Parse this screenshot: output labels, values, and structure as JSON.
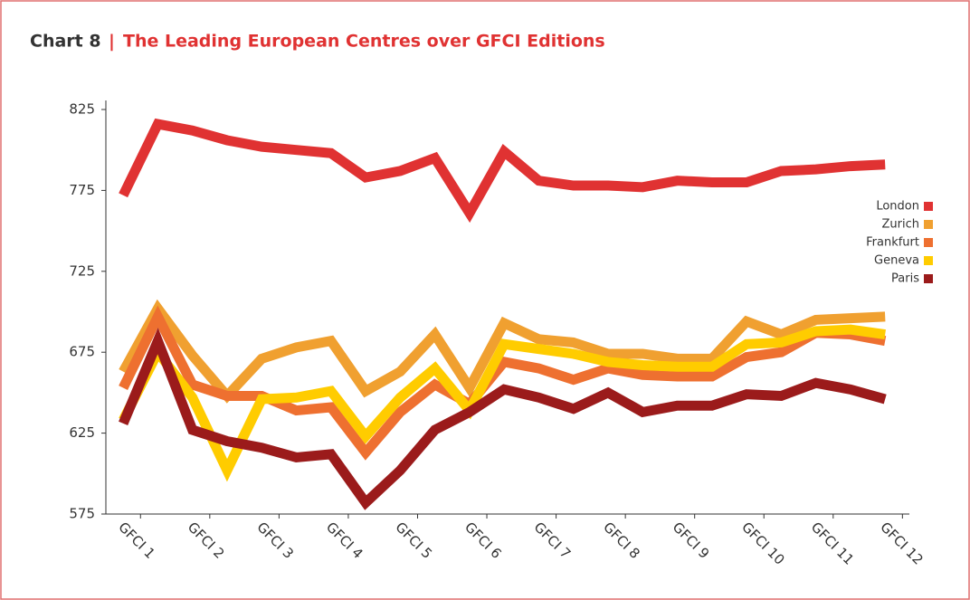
{
  "chart_data": {
    "type": "line",
    "chart_label": "Chart 8",
    "title": "The Leading European Centres over GFCI Editions",
    "x": [
      0.75,
      1.25,
      1.75,
      2.25,
      2.75,
      3.25,
      3.75,
      4.25,
      4.75,
      5.25,
      5.75,
      6.25,
      6.75,
      7.25,
      7.75,
      8.25,
      8.75,
      9.25,
      9.75,
      10.25,
      10.75,
      11.25,
      11.75
    ],
    "xlim": [
      0.5,
      12.1
    ],
    "xticks": [
      {
        "value": 1,
        "label": "GFCI 1"
      },
      {
        "value": 2,
        "label": "GFCI 2"
      },
      {
        "value": 3,
        "label": "GFCI 3"
      },
      {
        "value": 4,
        "label": "GFCI 4"
      },
      {
        "value": 5,
        "label": "GFCI 5"
      },
      {
        "value": 6,
        "label": "GFCI 6"
      },
      {
        "value": 7,
        "label": "GFCI 7"
      },
      {
        "value": 8,
        "label": "GFCI 8"
      },
      {
        "value": 9,
        "label": "GFCI 9"
      },
      {
        "value": 10,
        "label": "GFCI 10"
      },
      {
        "value": 11,
        "label": "GFCI 11"
      },
      {
        "value": 12,
        "label": "GFCI 12"
      }
    ],
    "ylim": [
      575,
      825
    ],
    "yticks": [
      575,
      625,
      675,
      725,
      775,
      825
    ],
    "legend": "right",
    "series": [
      {
        "name": "London",
        "color": "#e03232",
        "values": [
          772,
          816,
          812,
          806,
          802,
          800,
          798,
          783,
          787,
          795,
          761,
          799,
          781,
          778,
          778,
          777,
          781,
          780,
          780,
          787,
          788,
          790,
          791
        ]
      },
      {
        "name": "Zurich",
        "color": "#f0a030",
        "values": [
          663,
          702,
          673,
          648,
          671,
          678,
          682,
          651,
          663,
          686,
          653,
          693,
          683,
          681,
          674,
          674,
          671,
          671,
          694,
          686,
          695,
          696,
          697
        ]
      },
      {
        "name": "Frankfurt",
        "color": "#ee7030",
        "values": [
          653,
          697,
          655,
          648,
          648,
          639,
          641,
          613,
          638,
          655,
          643,
          669,
          665,
          658,
          665,
          661,
          660,
          660,
          672,
          675,
          687,
          686,
          682
        ]
      },
      {
        "name": "Geneva",
        "color": "#ffcc00",
        "values": [
          633,
          675,
          647,
          602,
          646,
          647,
          651,
          623,
          647,
          665,
          639,
          680,
          677,
          674,
          669,
          667,
          666,
          666,
          680,
          681,
          688,
          689,
          686
        ]
      },
      {
        "name": "Paris",
        "color": "#9b1b1b",
        "values": [
          631,
          682,
          627,
          620,
          616,
          610,
          612,
          582,
          602,
          627,
          638,
          652,
          647,
          640,
          650,
          638,
          642,
          642,
          649,
          648,
          656,
          652,
          646
        ]
      }
    ]
  }
}
